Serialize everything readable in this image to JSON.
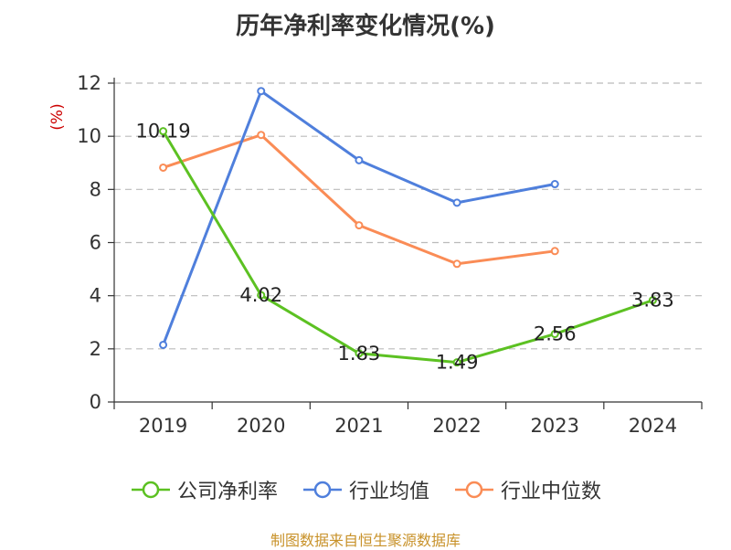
{
  "chart_data": {
    "type": "line",
    "title": "历年净利率变化情况(%)",
    "ylabel": "(%)",
    "xlabel": "",
    "categories": [
      "2019",
      "2020",
      "2021",
      "2022",
      "2023",
      "2024"
    ],
    "ylim": [
      0,
      12
    ],
    "yticks": [
      0,
      2,
      4,
      6,
      8,
      10,
      12
    ],
    "grid": true,
    "legend_position": "bottom",
    "series": [
      {
        "name": "公司净利率",
        "color": "#5cc122",
        "values": [
          10.19,
          4.02,
          1.83,
          1.49,
          2.56,
          3.83
        ],
        "labels": [
          "10.19",
          "4.02",
          "1.83",
          "1.49",
          "2.56",
          "3.83"
        ]
      },
      {
        "name": "行业均值",
        "color": "#4f7fdc",
        "values": [
          2.15,
          11.7,
          9.1,
          7.5,
          8.2,
          null
        ]
      },
      {
        "name": "行业中位数",
        "color": "#fa8c56",
        "values": [
          8.82,
          10.05,
          6.65,
          5.2,
          5.68,
          null
        ]
      }
    ]
  },
  "source": "制图数据来自恒生聚源数据库"
}
